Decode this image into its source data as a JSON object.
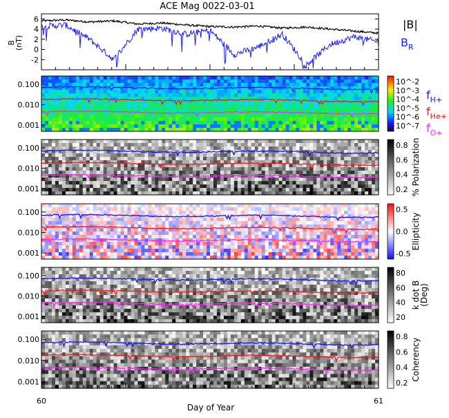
{
  "title": "ACE Mag 0022-03-01",
  "xlabel": "Day of Year",
  "x_ticks": [
    "60",
    "61"
  ],
  "colors": {
    "btot": "#000000",
    "br": "#1a1aff",
    "h": "#1010ff",
    "he": "#ff1010",
    "o": "#ff20ff"
  },
  "chart_data": [
    {
      "type": "line",
      "ylabel": "B\n(nT)",
      "ylim": [
        -4,
        7
      ],
      "yticks": [
        "6",
        "4",
        "2",
        "0",
        "-2"
      ],
      "x": [
        60.0,
        61.0
      ],
      "series": [
        {
          "name": "|B|",
          "color": "#000000",
          "approx_values": [
            5.6,
            5.8,
            5.4,
            5.6,
            5.0,
            5.2,
            4.8,
            4.5,
            4.4,
            4.6,
            4.2,
            4.4,
            4.0,
            3.6,
            3.2
          ]
        },
        {
          "name": "B_R",
          "color": "#1a1aff",
          "approx_values": [
            4.5,
            4.8,
            2.0,
            -2.0,
            4.0,
            4.2,
            3.0,
            3.8,
            -1.0,
            0.5,
            3.0,
            -3.0,
            1.0,
            2.5,
            1.5
          ]
        }
      ],
      "legend": [
        "|B|",
        "B_R"
      ]
    },
    {
      "type": "heatmap",
      "panel": "power spectrum",
      "colorbar_ticks": [
        "10^-2",
        "10^-3",
        "10^-4",
        "10^-5",
        "10^-6",
        "10^-7"
      ],
      "yticks": [
        "0.100",
        "0.010",
        "0.001"
      ],
      "overlays": [
        {
          "name": "f_H+",
          "approx_hz": 0.07
        },
        {
          "name": "f_He+",
          "approx_hz": 0.018
        },
        {
          "name": "f_O+",
          "approx_hz": 0.0045
        }
      ]
    },
    {
      "type": "heatmap",
      "panel": "polarization",
      "colorbar_label": "% Polarization",
      "colorbar_ticks": [
        "0.8",
        "0.6",
        "0.4",
        "0.2"
      ],
      "yticks": [
        "0.100",
        "0.010",
        "0.001"
      ]
    },
    {
      "type": "heatmap",
      "panel": "ellipticity",
      "colorbar_label": "Ellipticity",
      "colorbar_ticks": [
        "0.5",
        "0.0",
        "-0.5"
      ],
      "yticks": [
        "0.100",
        "0.010",
        "0.001"
      ]
    },
    {
      "type": "heatmap",
      "panel": "k dot B",
      "colorbar_label": "k dot B\n(Deg)",
      "colorbar_ticks": [
        "80",
        "60",
        "40",
        "20"
      ],
      "yticks": [
        "0.100",
        "0.010",
        "0.001"
      ]
    },
    {
      "type": "heatmap",
      "panel": "coherency",
      "colorbar_label": "Coherency",
      "colorbar_ticks": [
        "0.8",
        "0.6",
        "0.4",
        "0.2"
      ],
      "yticks": [
        "0.100",
        "0.010",
        "0.001"
      ]
    }
  ],
  "legend_labels": {
    "btot": "|B|",
    "br_main": "B",
    "br_sub": "R",
    "fh_main": "f",
    "fh_sub": "H+",
    "fhe_main": "f",
    "fhe_sub": "He+",
    "fo_main": "f",
    "fo_sub": "O+"
  }
}
